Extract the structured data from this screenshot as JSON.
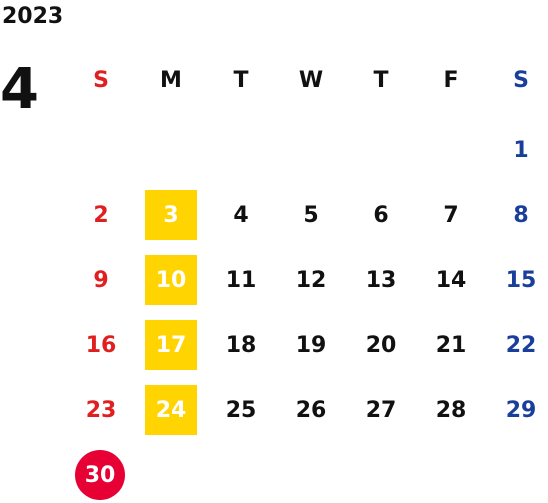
{
  "calendar": {
    "year": "2023",
    "month": "4",
    "weekday_headers": [
      "S",
      "M",
      "T",
      "W",
      "T",
      "F",
      "S"
    ],
    "weeks": [
      [
        "",
        "",
        "",
        "",
        "",
        "",
        "1"
      ],
      [
        "2",
        "3",
        "4",
        "5",
        "6",
        "7",
        "8"
      ],
      [
        "9",
        "10",
        "11",
        "12",
        "13",
        "14",
        "15"
      ],
      [
        "16",
        "17",
        "18",
        "19",
        "20",
        "21",
        "22"
      ],
      [
        "23",
        "24",
        "25",
        "26",
        "27",
        "28",
        "29"
      ],
      [
        "30",
        "",
        "",
        "",
        "",
        "",
        ""
      ]
    ],
    "highlighted_mondays": [
      "3",
      "10",
      "17",
      "24"
    ],
    "today": "30"
  },
  "colors": {
    "sunday": "#e02020",
    "saturday": "#1a3f9a",
    "weekday": "#111111",
    "highlight": "#ffd400",
    "today_circle": "#e60033"
  }
}
